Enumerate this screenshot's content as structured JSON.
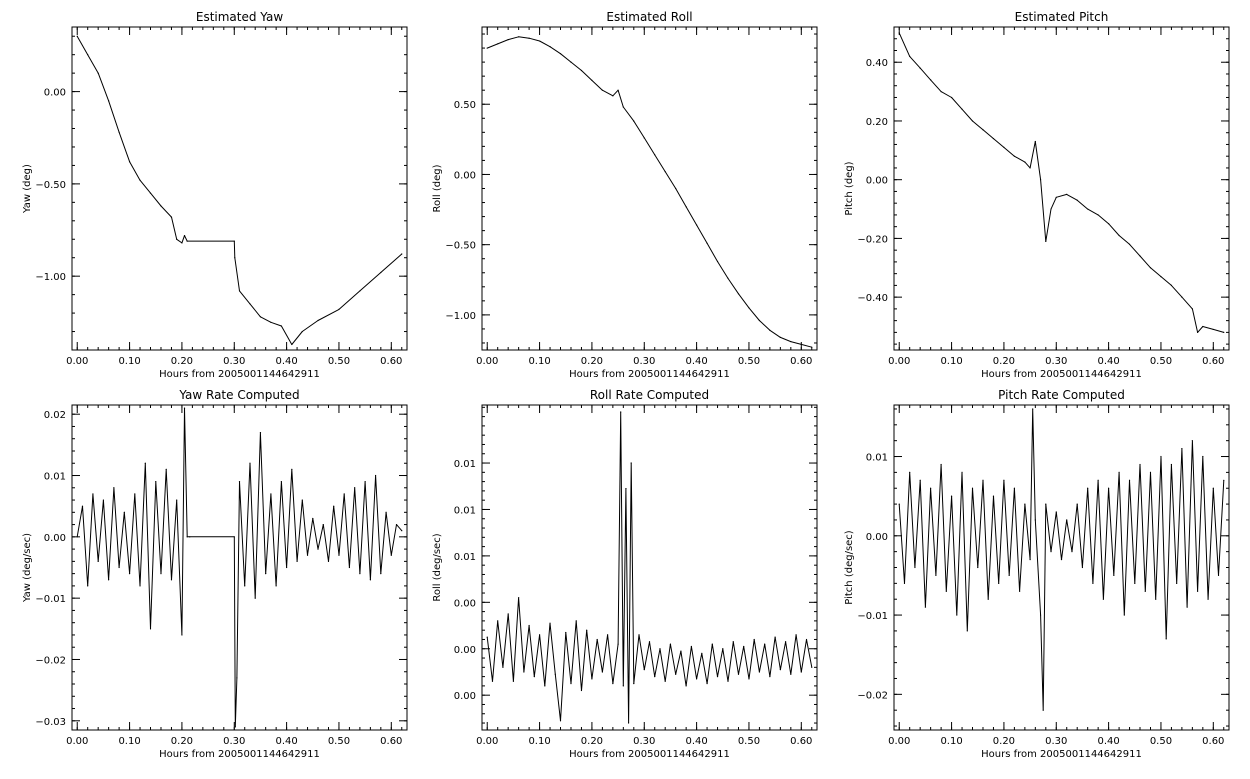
{
  "chart_data": [
    {
      "type": "line",
      "title": "Estimated Yaw",
      "xlabel": "Hours from 2005001144642911",
      "ylabel": "Yaw (deg)",
      "xlim": [
        -0.01,
        0.63
      ],
      "ylim": [
        -1.4,
        0.35
      ],
      "x_ticks": [
        0.0,
        0.1,
        0.2,
        0.3,
        0.4,
        0.5,
        0.6
      ],
      "x_tick_labels": [
        "0.00",
        "0.10",
        "0.20",
        "0.30",
        "0.40",
        "0.50",
        "0.60"
      ],
      "y_ticks": [
        -1.0,
        -0.5,
        0.0
      ],
      "y_tick_labels": [
        "−1.00",
        "−0.50",
        "0.00"
      ],
      "series": [
        {
          "x": [
            0.0,
            0.02,
            0.04,
            0.06,
            0.08,
            0.1,
            0.12,
            0.14,
            0.16,
            0.18,
            0.19,
            0.2,
            0.205,
            0.21,
            0.3,
            0.301,
            0.31,
            0.33,
            0.35,
            0.37,
            0.39,
            0.41,
            0.43,
            0.46,
            0.5,
            0.54,
            0.58,
            0.62
          ],
          "y": [
            0.3,
            0.2,
            0.1,
            -0.05,
            -0.22,
            -0.38,
            -0.48,
            -0.55,
            -0.62,
            -0.68,
            -0.8,
            -0.82,
            -0.78,
            -0.81,
            -0.81,
            -0.9,
            -1.08,
            -1.15,
            -1.22,
            -1.25,
            -1.27,
            -1.37,
            -1.3,
            -1.24,
            -1.18,
            -1.08,
            -0.98,
            -0.88
          ]
        }
      ]
    },
    {
      "type": "line",
      "title": "Estimated Roll",
      "xlabel": "Hours from 2005001144642911",
      "ylabel": "Roll (deg)",
      "xlim": [
        -0.01,
        0.63
      ],
      "ylim": [
        -1.25,
        1.05
      ],
      "x_ticks": [
        0.0,
        0.1,
        0.2,
        0.3,
        0.4,
        0.5,
        0.6
      ],
      "x_tick_labels": [
        "0.00",
        "0.10",
        "0.20",
        "0.30",
        "0.40",
        "0.50",
        "0.60"
      ],
      "y_ticks": [
        -1.0,
        -0.5,
        0.0,
        0.5
      ],
      "y_tick_labels": [
        "−1.00",
        "−0.50",
        "0.00",
        "0.50"
      ],
      "series": [
        {
          "x": [
            0.0,
            0.02,
            0.04,
            0.06,
            0.08,
            0.1,
            0.12,
            0.14,
            0.16,
            0.18,
            0.2,
            0.22,
            0.24,
            0.25,
            0.26,
            0.28,
            0.3,
            0.32,
            0.34,
            0.36,
            0.38,
            0.4,
            0.42,
            0.44,
            0.46,
            0.48,
            0.5,
            0.52,
            0.54,
            0.56,
            0.58,
            0.6,
            0.62
          ],
          "y": [
            0.9,
            0.93,
            0.96,
            0.98,
            0.97,
            0.95,
            0.91,
            0.86,
            0.8,
            0.74,
            0.67,
            0.6,
            0.56,
            0.6,
            0.48,
            0.38,
            0.26,
            0.14,
            0.02,
            -0.1,
            -0.23,
            -0.36,
            -0.49,
            -0.62,
            -0.74,
            -0.85,
            -0.95,
            -1.04,
            -1.11,
            -1.16,
            -1.19,
            -1.21,
            -1.23
          ]
        }
      ]
    },
    {
      "type": "line",
      "title": "Estimated Pitch",
      "xlabel": "Hours from 2005001144642911",
      "ylabel": "Pitch (deg)",
      "xlim": [
        -0.01,
        0.63
      ],
      "ylim": [
        -0.58,
        0.52
      ],
      "x_ticks": [
        0.0,
        0.1,
        0.2,
        0.3,
        0.4,
        0.5,
        0.6
      ],
      "x_tick_labels": [
        "0.00",
        "0.10",
        "0.20",
        "0.30",
        "0.40",
        "0.50",
        "0.60"
      ],
      "y_ticks": [
        -0.4,
        -0.2,
        0.0,
        0.2,
        0.4
      ],
      "y_tick_labels": [
        "−0.40",
        "−0.20",
        "0.00",
        "0.20",
        "0.40"
      ],
      "series": [
        {
          "x": [
            0.0,
            0.02,
            0.04,
            0.06,
            0.08,
            0.1,
            0.12,
            0.14,
            0.16,
            0.18,
            0.2,
            0.22,
            0.24,
            0.25,
            0.26,
            0.27,
            0.28,
            0.29,
            0.3,
            0.32,
            0.34,
            0.36,
            0.38,
            0.4,
            0.42,
            0.44,
            0.46,
            0.48,
            0.5,
            0.52,
            0.54,
            0.56,
            0.57,
            0.58,
            0.6,
            0.62
          ],
          "y": [
            0.5,
            0.42,
            0.38,
            0.34,
            0.3,
            0.28,
            0.24,
            0.2,
            0.17,
            0.14,
            0.11,
            0.08,
            0.06,
            0.04,
            0.13,
            0.0,
            -0.21,
            -0.1,
            -0.06,
            -0.05,
            -0.07,
            -0.1,
            -0.12,
            -0.15,
            -0.19,
            -0.22,
            -0.26,
            -0.3,
            -0.33,
            -0.36,
            -0.4,
            -0.44,
            -0.52,
            -0.5,
            -0.51,
            -0.52
          ]
        }
      ]
    },
    {
      "type": "line",
      "title": "Yaw Rate Computed",
      "xlabel": "Hours from 2005001144642911",
      "ylabel": "Yaw (deg/sec)",
      "xlim": [
        -0.01,
        0.63
      ],
      "ylim": [
        -0.0315,
        0.0215
      ],
      "x_ticks": [
        0.0,
        0.1,
        0.2,
        0.3,
        0.4,
        0.5,
        0.6
      ],
      "x_tick_labels": [
        "0.00",
        "0.10",
        "0.20",
        "0.30",
        "0.40",
        "0.50",
        "0.60"
      ],
      "y_ticks": [
        -0.03,
        -0.02,
        -0.01,
        0.0,
        0.01,
        0.02
      ],
      "y_tick_labels": [
        "−0.03",
        "−0.02",
        "−0.01",
        "0.00",
        "0.01",
        "0.02"
      ],
      "series": [
        {
          "x": [
            0.0,
            0.01,
            0.02,
            0.03,
            0.04,
            0.05,
            0.06,
            0.07,
            0.08,
            0.09,
            0.1,
            0.11,
            0.12,
            0.13,
            0.14,
            0.15,
            0.16,
            0.17,
            0.18,
            0.19,
            0.2,
            0.205,
            0.21,
            0.215,
            0.3,
            0.302,
            0.305,
            0.31,
            0.32,
            0.33,
            0.34,
            0.35,
            0.36,
            0.37,
            0.38,
            0.39,
            0.4,
            0.41,
            0.42,
            0.43,
            0.44,
            0.45,
            0.46,
            0.47,
            0.48,
            0.49,
            0.5,
            0.51,
            0.52,
            0.53,
            0.54,
            0.55,
            0.56,
            0.57,
            0.58,
            0.59,
            0.6,
            0.61,
            0.62
          ],
          "y": [
            0.0,
            0.005,
            -0.008,
            0.007,
            -0.004,
            0.006,
            -0.007,
            0.008,
            -0.005,
            0.004,
            -0.006,
            0.007,
            -0.008,
            0.012,
            -0.015,
            0.009,
            -0.006,
            0.011,
            -0.007,
            0.006,
            -0.016,
            0.021,
            0.0,
            0.0,
            0.0,
            -0.031,
            -0.023,
            0.009,
            -0.008,
            0.012,
            -0.01,
            0.017,
            -0.006,
            0.007,
            -0.008,
            0.009,
            -0.005,
            0.011,
            -0.004,
            0.006,
            -0.003,
            0.003,
            -0.002,
            0.002,
            -0.004,
            0.005,
            -0.003,
            0.007,
            -0.005,
            0.008,
            -0.006,
            0.009,
            -0.007,
            0.01,
            -0.006,
            0.004,
            -0.003,
            0.002,
            0.001
          ]
        }
      ]
    },
    {
      "type": "line",
      "title": "Roll Rate Computed",
      "xlabel": "Hours from 2005001144642911",
      "ylabel": "Roll (deg/sec)",
      "xlim": [
        -0.01,
        0.63
      ],
      "ylim": [
        -0.0015,
        0.0125
      ],
      "x_ticks": [
        0.0,
        0.1,
        0.2,
        0.3,
        0.4,
        0.5,
        0.6
      ],
      "x_tick_labels": [
        "0.00",
        "0.10",
        "0.20",
        "0.30",
        "0.40",
        "0.50",
        "0.60"
      ],
      "y_ticks": [
        0.0,
        0.002,
        0.004,
        0.006,
        0.008,
        0.01
      ],
      "y_tick_labels": [
        "0.00",
        "0.00",
        "0.00",
        "0.01",
        "0.01",
        "0.01"
      ],
      "series": [
        {
          "x": [
            0.0,
            0.01,
            0.02,
            0.03,
            0.04,
            0.05,
            0.06,
            0.07,
            0.08,
            0.09,
            0.1,
            0.11,
            0.12,
            0.13,
            0.14,
            0.15,
            0.16,
            0.17,
            0.18,
            0.19,
            0.2,
            0.21,
            0.22,
            0.23,
            0.24,
            0.25,
            0.255,
            0.26,
            0.265,
            0.27,
            0.275,
            0.28,
            0.29,
            0.3,
            0.31,
            0.32,
            0.33,
            0.34,
            0.35,
            0.36,
            0.37,
            0.38,
            0.39,
            0.4,
            0.41,
            0.42,
            0.43,
            0.44,
            0.45,
            0.46,
            0.47,
            0.48,
            0.49,
            0.5,
            0.51,
            0.52,
            0.53,
            0.54,
            0.55,
            0.56,
            0.57,
            0.58,
            0.59,
            0.6,
            0.61,
            0.62
          ],
          "y": [
            0.0025,
            0.0006,
            0.0032,
            0.0012,
            0.0035,
            0.0006,
            0.0042,
            0.001,
            0.003,
            0.0008,
            0.0026,
            0.0004,
            0.0031,
            0.0009,
            -0.0011,
            0.0027,
            0.0005,
            0.0032,
            0.0002,
            0.0028,
            0.0007,
            0.0024,
            0.001,
            0.0026,
            0.0005,
            0.0022,
            0.0122,
            0.0004,
            0.0089,
            -0.0012,
            0.01,
            0.0005,
            0.0026,
            0.0011,
            0.0023,
            0.0008,
            0.002,
            0.0006,
            0.0022,
            0.0009,
            0.0019,
            0.0004,
            0.0021,
            0.0007,
            0.0018,
            0.0005,
            0.0022,
            0.0008,
            0.002,
            0.0006,
            0.0023,
            0.0009,
            0.0021,
            0.0007,
            0.0024,
            0.001,
            0.0022,
            0.0008,
            0.0025,
            0.0011,
            0.0023,
            0.0009,
            0.0026,
            0.001,
            0.0024,
            0.0012
          ]
        }
      ]
    },
    {
      "type": "line",
      "title": "Pitch Rate Computed",
      "xlabel": "Hours from 2005001144642911",
      "ylabel": "Pitch (deg/sec)",
      "xlim": [
        -0.01,
        0.63
      ],
      "ylim": [
        -0.0245,
        0.0165
      ],
      "x_ticks": [
        0.0,
        0.1,
        0.2,
        0.3,
        0.4,
        0.5,
        0.6
      ],
      "x_tick_labels": [
        "0.00",
        "0.10",
        "0.20",
        "0.30",
        "0.40",
        "0.50",
        "0.60"
      ],
      "y_ticks": [
        -0.02,
        -0.01,
        0.0,
        0.01
      ],
      "y_tick_labels": [
        "−0.02",
        "−0.01",
        "0.00",
        "0.01"
      ],
      "series": [
        {
          "x": [
            0.0,
            0.01,
            0.02,
            0.03,
            0.04,
            0.05,
            0.06,
            0.07,
            0.08,
            0.09,
            0.1,
            0.11,
            0.12,
            0.13,
            0.14,
            0.15,
            0.16,
            0.17,
            0.18,
            0.19,
            0.2,
            0.21,
            0.22,
            0.23,
            0.24,
            0.25,
            0.255,
            0.26,
            0.27,
            0.275,
            0.28,
            0.29,
            0.3,
            0.31,
            0.32,
            0.33,
            0.34,
            0.35,
            0.36,
            0.37,
            0.38,
            0.39,
            0.4,
            0.41,
            0.42,
            0.43,
            0.44,
            0.45,
            0.46,
            0.47,
            0.48,
            0.49,
            0.5,
            0.51,
            0.52,
            0.53,
            0.54,
            0.55,
            0.56,
            0.57,
            0.58,
            0.59,
            0.6,
            0.61,
            0.62
          ],
          "y": [
            0.004,
            -0.006,
            0.008,
            -0.004,
            0.007,
            -0.009,
            0.006,
            -0.005,
            0.009,
            -0.007,
            0.005,
            -0.01,
            0.008,
            -0.012,
            0.006,
            -0.004,
            0.007,
            -0.008,
            0.005,
            -0.006,
            0.007,
            -0.005,
            0.006,
            -0.007,
            0.004,
            -0.003,
            0.016,
            0.002,
            -0.01,
            -0.022,
            0.004,
            -0.002,
            0.003,
            -0.003,
            0.002,
            -0.002,
            0.004,
            -0.004,
            0.006,
            -0.006,
            0.007,
            -0.008,
            0.006,
            -0.005,
            0.008,
            -0.01,
            0.007,
            -0.006,
            0.009,
            -0.007,
            0.008,
            -0.008,
            0.01,
            -0.013,
            0.009,
            -0.006,
            0.011,
            -0.009,
            0.012,
            -0.007,
            0.01,
            -0.008,
            0.006,
            -0.005,
            0.007
          ]
        }
      ]
    }
  ]
}
